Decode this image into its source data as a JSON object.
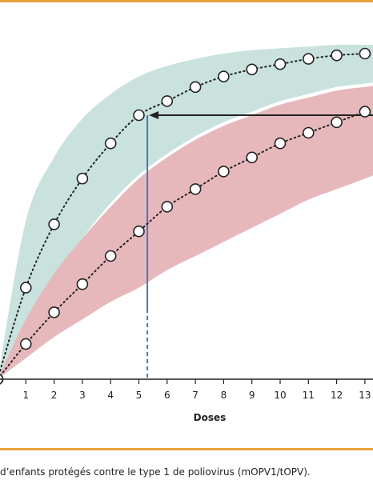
{
  "caption": "d’enfants protégés contre le type 1 de poliovirus (mOPV1/tOPV).",
  "chart_data": {
    "type": "line",
    "xlabel": "Doses",
    "ylabel": "",
    "title": "",
    "x": [
      0,
      1,
      2,
      3,
      4,
      5,
      6,
      7,
      8,
      9,
      10,
      11,
      12,
      13
    ],
    "xlim": [
      0,
      13.3
    ],
    "ylim": [
      0,
      1
    ],
    "series": [
      {
        "color": "#5aa9a0",
        "band_color": "#c9e2de",
        "values": [
          0.0,
          0.26,
          0.44,
          0.57,
          0.67,
          0.75,
          0.79,
          0.83,
          0.86,
          0.88,
          0.895,
          0.91,
          0.92,
          0.925
        ],
        "band_upper": [
          0.0,
          0.45,
          0.63,
          0.74,
          0.81,
          0.86,
          0.89,
          0.91,
          0.925,
          0.935,
          0.94,
          0.945,
          0.95,
          0.95
        ],
        "band_lower": [
          0.0,
          0.14,
          0.28,
          0.4,
          0.5,
          0.58,
          0.64,
          0.69,
          0.73,
          0.76,
          0.79,
          0.81,
          0.83,
          0.84
        ]
      },
      {
        "color": "#c0505a",
        "band_color": "#e6b8bc",
        "values": [
          0.0,
          0.1,
          0.19,
          0.27,
          0.35,
          0.42,
          0.49,
          0.54,
          0.59,
          0.63,
          0.67,
          0.7,
          0.73,
          0.76
        ],
        "band_upper": [
          0.0,
          0.17,
          0.3,
          0.4,
          0.49,
          0.57,
          0.63,
          0.68,
          0.72,
          0.75,
          0.78,
          0.8,
          0.82,
          0.83
        ],
        "band_lower": [
          0.0,
          0.06,
          0.12,
          0.17,
          0.22,
          0.26,
          0.31,
          0.35,
          0.39,
          0.43,
          0.47,
          0.51,
          0.54,
          0.57
        ]
      }
    ],
    "annotation": {
      "x": 5.3,
      "y": 0.75,
      "line_color": "#4a78b8",
      "arrow_color": "#222222"
    }
  }
}
